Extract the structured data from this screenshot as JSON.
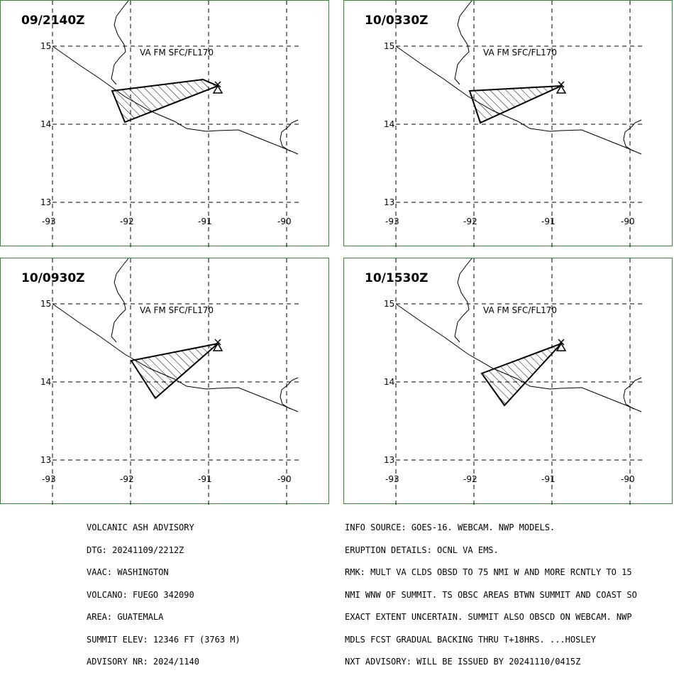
{
  "panels": [
    {
      "time": "09/2140Z",
      "level": "VA FM SFC/FL170"
    },
    {
      "time": "10/0330Z",
      "level": "VA FM SFC/FL170"
    },
    {
      "time": "10/0930Z",
      "level": "VA FM SFC/FL170"
    },
    {
      "time": "10/1530Z",
      "level": "VA FM SFC/FL170"
    }
  ],
  "lat_labels": [
    "15",
    "14",
    "13"
  ],
  "lon_labels": [
    "-93",
    "-92",
    "-91",
    "-90"
  ],
  "advisory_left": [
    "VOLCANIC ASH ADVISORY",
    "DTG: 20241109/2212Z",
    "VAAC: WASHINGTON",
    "VOLCANO: FUEGO 342090",
    "AREA: GUATEMALA",
    "SUMMIT ELEV: 12346 FT (3763 M)",
    "ADVISORY NR: 2024/1140"
  ],
  "advisory_right": [
    "INFO SOURCE: GOES-16. WEBCAM. NWP MODELS.",
    "ERUPTION DETAILS: OCNL VA EMS.",
    "RMK: MULT VA CLDS OBSD TO 75 NMI W AND MORE RCNTLY TO 15",
    "NMI WNW OF SUMMIT. TS OBSC AREAS BTWN SUMMIT AND COAST SO",
    "EXACT EXTENT UNCERTAIN. SUMMIT ALSO OBSCD ON WEBCAM. NWP",
    "MDLS FCST GRADUAL BACKING THRU T+18HRS. ...HOSLEY",
    "NXT ADVISORY: WILL BE ISSUED BY 20241110/0415Z"
  ],
  "colors": {
    "panel_border": "#2e8b2e",
    "lines": "#000000"
  }
}
